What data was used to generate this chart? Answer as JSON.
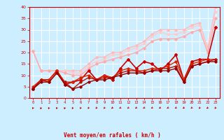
{
  "xlabel": "Vent moyen/en rafales ( km/h )",
  "bg_color": "#cceeff",
  "grid_color": "#ffffff",
  "xlim": [
    -0.5,
    23.5
  ],
  "ylim": [
    0,
    40
  ],
  "yticks": [
    0,
    5,
    10,
    15,
    20,
    25,
    30,
    35,
    40
  ],
  "xticks": [
    0,
    1,
    2,
    3,
    4,
    5,
    6,
    7,
    8,
    9,
    10,
    11,
    12,
    13,
    14,
    15,
    16,
    17,
    18,
    19,
    20,
    21,
    22,
    23
  ],
  "series": [
    {
      "x": [
        0,
        1,
        2,
        3,
        4,
        5,
        6,
        7,
        8,
        9,
        10,
        11,
        12,
        13,
        14,
        15,
        16,
        17,
        18,
        19,
        20,
        21,
        22,
        23
      ],
      "y": [
        20.5,
        12,
        12,
        12,
        12,
        12,
        12,
        15,
        18,
        18,
        20,
        20,
        22,
        23,
        25,
        28,
        30,
        30,
        30,
        30,
        32,
        33,
        22,
        40
      ],
      "color": "#ffbbbb",
      "lw": 1.0,
      "marker": "D",
      "ms": 1.8
    },
    {
      "x": [
        0,
        1,
        2,
        3,
        4,
        5,
        6,
        7,
        8,
        9,
        10,
        11,
        12,
        13,
        14,
        15,
        16,
        17,
        18,
        19,
        20,
        21,
        22,
        23
      ],
      "y": [
        20.5,
        12,
        12,
        12,
        12,
        11,
        11,
        14,
        16,
        17,
        19,
        19,
        21,
        22,
        24,
        27,
        29,
        28,
        28,
        29,
        31,
        32,
        21,
        38
      ],
      "color": "#ffcccc",
      "lw": 1.0,
      "marker": "D",
      "ms": 1.8
    },
    {
      "x": [
        0,
        1,
        2,
        3,
        4,
        5,
        6,
        7,
        8,
        9,
        10,
        11,
        12,
        13,
        14,
        15,
        16,
        17,
        18,
        19,
        20,
        21,
        22,
        23
      ],
      "y": [
        20.5,
        12,
        12,
        12,
        11,
        10,
        10,
        13,
        15,
        16,
        17,
        18,
        19,
        20,
        22,
        25,
        26,
        26,
        26,
        27,
        29,
        30,
        20,
        35
      ],
      "color": "#ffaaaa",
      "lw": 1.0,
      "marker": "D",
      "ms": 1.8
    },
    {
      "x": [
        0,
        1,
        2,
        3,
        4,
        5,
        6,
        7,
        8,
        9,
        10,
        11,
        12,
        13,
        14,
        15,
        16,
        17,
        18,
        19,
        20,
        21,
        22,
        23
      ],
      "y": [
        4,
        8,
        8,
        12,
        6,
        7,
        8,
        12,
        8,
        10,
        8,
        13,
        17,
        13,
        16,
        15,
        12,
        15,
        19,
        8,
        16,
        17,
        17,
        31
      ],
      "color": "#cc0000",
      "lw": 1.2,
      "marker": "D",
      "ms": 2.0
    },
    {
      "x": [
        0,
        1,
        2,
        3,
        4,
        5,
        6,
        7,
        8,
        9,
        10,
        11,
        12,
        13,
        14,
        15,
        16,
        17,
        18,
        19,
        20,
        21,
        22,
        23
      ],
      "y": [
        5,
        8,
        8,
        12,
        7,
        7,
        9,
        10,
        8,
        10,
        9,
        12,
        13,
        12,
        12,
        13,
        13,
        14,
        16,
        8,
        15,
        16,
        17,
        17
      ],
      "color": "#dd2200",
      "lw": 1.0,
      "marker": "D",
      "ms": 1.8
    },
    {
      "x": [
        0,
        1,
        2,
        3,
        4,
        5,
        6,
        7,
        8,
        9,
        10,
        11,
        12,
        13,
        14,
        15,
        16,
        17,
        18,
        19,
        20,
        21,
        22,
        23
      ],
      "y": [
        4,
        8,
        7,
        11,
        7,
        4,
        7,
        9,
        8,
        9,
        9,
        11,
        12,
        12,
        11,
        12,
        13,
        13,
        14,
        7,
        14,
        15,
        16,
        17
      ],
      "color": "#bb1100",
      "lw": 1.0,
      "marker": "D",
      "ms": 1.8
    },
    {
      "x": [
        0,
        1,
        2,
        3,
        4,
        5,
        6,
        7,
        8,
        9,
        10,
        11,
        12,
        13,
        14,
        15,
        16,
        17,
        18,
        19,
        20,
        21,
        22,
        23
      ],
      "y": [
        4,
        7,
        7,
        11,
        6,
        4,
        5,
        7,
        8,
        8,
        9,
        10,
        11,
        11,
        11,
        12,
        12,
        12,
        13,
        7,
        14,
        15,
        16,
        16
      ],
      "color": "#990000",
      "lw": 1.0,
      "marker": "D",
      "ms": 1.8
    }
  ],
  "arrow_angles": [
    45,
    55,
    50,
    45,
    50,
    45,
    40,
    35,
    30,
    30,
    25,
    25,
    25,
    20,
    20,
    20,
    20,
    20,
    20,
    25,
    25,
    30,
    30,
    30
  ]
}
